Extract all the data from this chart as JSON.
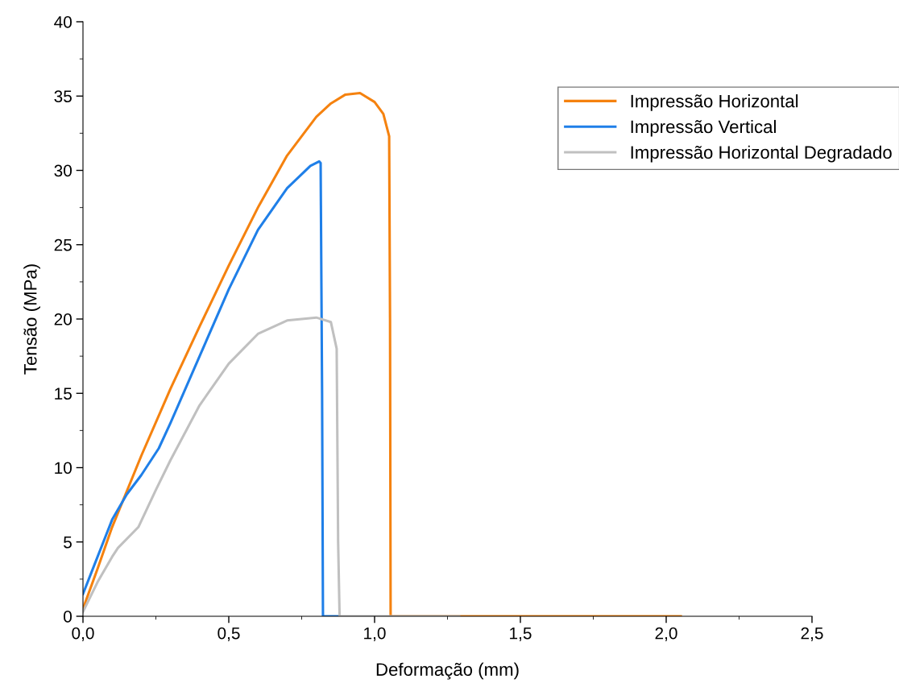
{
  "chart_data": {
    "type": "line",
    "xlabel": "Deformação (mm)",
    "ylabel": "Tensão (MPa)",
    "xlim": [
      0,
      2.5
    ],
    "ylim": [
      0,
      40
    ],
    "xticks": [
      {
        "value": 0,
        "label": "0,0"
      },
      {
        "value": 0.5,
        "label": "0,5"
      },
      {
        "value": 1,
        "label": "1,0"
      },
      {
        "value": 1.5,
        "label": "1,5"
      },
      {
        "value": 2,
        "label": "2,0"
      },
      {
        "value": 2.5,
        "label": "2,5"
      }
    ],
    "yticks": [
      0,
      5,
      10,
      15,
      20,
      25,
      30,
      35,
      40
    ],
    "grid": false,
    "legend": "top right",
    "marker": "none",
    "line_style": "solid",
    "series": [
      {
        "name": "Impressão Horizontal",
        "color": "#f5820f",
        "x": [
          0,
          0.05,
          0.1,
          0.2,
          0.3,
          0.4,
          0.5,
          0.6,
          0.7,
          0.8,
          0.85,
          0.9,
          0.95,
          1.0,
          1.03,
          1.05,
          1.053,
          1.055,
          1.3,
          2.05
        ],
        "values": [
          0.5,
          3.2,
          6,
          10.8,
          15.3,
          19.5,
          23.6,
          27.5,
          31,
          33.6,
          34.5,
          35.1,
          35.2,
          34.6,
          33.8,
          32.3,
          20,
          0,
          0,
          0
        ]
      },
      {
        "name": "Impressão Vertical",
        "color": "#1f7fe8",
        "x": [
          0,
          0.03,
          0.08,
          0.1,
          0.15,
          0.2,
          0.26,
          0.3,
          0.4,
          0.5,
          0.6,
          0.7,
          0.78,
          0.81,
          0.815,
          0.82,
          0.823,
          0.88
        ],
        "values": [
          1.5,
          3,
          5.5,
          6.5,
          8.2,
          9.5,
          11.3,
          13,
          17.5,
          22,
          26,
          28.8,
          30.3,
          30.6,
          30.5,
          15,
          0,
          0
        ]
      },
      {
        "name": "Impressão Horizontal Degradado",
        "color": "#c0c0c0",
        "x": [
          0,
          0.05,
          0.1,
          0.12,
          0.19,
          0.25,
          0.3,
          0.4,
          0.5,
          0.6,
          0.7,
          0.8,
          0.85,
          0.87,
          0.875,
          0.88,
          1.29
        ],
        "values": [
          0.3,
          2.3,
          4,
          4.6,
          6,
          8.5,
          10.5,
          14.2,
          17,
          19,
          19.9,
          20.1,
          19.8,
          18,
          5,
          0,
          0
        ]
      }
    ]
  }
}
